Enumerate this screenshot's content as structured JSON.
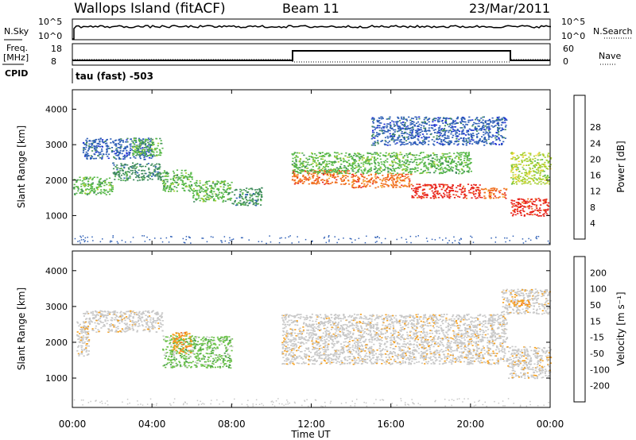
{
  "header": {
    "station": "Wallops Island (fitACF)",
    "beam": "Beam 11",
    "date": "23/Mar/2011"
  },
  "strip_labels": {
    "nsky": "N.Sky",
    "nsearch": "N.Search",
    "freq_line1": "Freq.",
    "freq_line2": "[MHz]",
    "nave": "Nave",
    "cpid": "CPID",
    "cpid_value": "tau (fast) -503"
  },
  "strip_ticks": {
    "noise_left_top": "10^5",
    "noise_left_bottom": "10^0",
    "noise_right_top": "10^5",
    "noise_right_bottom": "10^0",
    "freq_top": "18",
    "freq_bottom": "8",
    "nave_top": "60",
    "nave_bottom": "0"
  },
  "colors": {
    "power": [
      "#1c2bd6",
      "#2e5fb6",
      "#3f8b5c",
      "#57b848",
      "#a7d032",
      "#f2d43b",
      "#f5ab2c",
      "#f06d1c",
      "#e8231b"
    ],
    "velocity": [
      "#e8231b",
      "#f06d1c",
      "#f5a01e",
      "#c8c8c8",
      "#c8c8c8",
      "#6cc24a",
      "#3e9a3e",
      "#2e5fb6",
      "#1c2bd6"
    ],
    "ground_scatter": "#bdbdbd"
  },
  "chart_data": [
    {
      "type": "heatmap",
      "panel": "power",
      "title": "",
      "xlabel": "Time UT",
      "ylabel": "Slant Range [km]",
      "xlim": [
        "00:00",
        "24:00"
      ],
      "ylim": [
        180,
        4550
      ],
      "x_ticks": [
        "00:00",
        "04:00",
        "08:00",
        "12:00",
        "16:00",
        "20:00",
        "00:00"
      ],
      "y_ticks": [
        1000,
        2000,
        3000,
        4000
      ],
      "colorbar_label": "Power [dB]",
      "colorbar_ticks": [
        4,
        8,
        12,
        16,
        20,
        24,
        28
      ],
      "regions": [
        {
          "t": [
            0.0,
            2.0
          ],
          "r": [
            1600,
            2100
          ],
          "level": 3
        },
        {
          "t": [
            2.0,
            4.5
          ],
          "r": [
            2000,
            2500
          ],
          "level": 2
        },
        {
          "t": [
            4.5,
            6.0
          ],
          "r": [
            1700,
            2300
          ],
          "level": 3
        },
        {
          "t": [
            6.0,
            8.0
          ],
          "r": [
            1400,
            2000
          ],
          "level": 3
        },
        {
          "t": [
            8.0,
            9.5
          ],
          "r": [
            1300,
            1800
          ],
          "level": 2
        },
        {
          "t": [
            0.5,
            4.0
          ],
          "r": [
            2600,
            3200
          ],
          "level": 1
        },
        {
          "t": [
            3.0,
            4.5
          ],
          "r": [
            2700,
            3200
          ],
          "level": 3
        },
        {
          "t": [
            11.0,
            14.0
          ],
          "r": [
            1900,
            2300
          ],
          "level": 7
        },
        {
          "t": [
            14.0,
            17.0
          ],
          "r": [
            1800,
            2200
          ],
          "level": 7
        },
        {
          "t": [
            17.0,
            20.5
          ],
          "r": [
            1500,
            1900
          ],
          "level": 8
        },
        {
          "t": [
            20.5,
            21.8
          ],
          "r": [
            1500,
            1800
          ],
          "level": 7
        },
        {
          "t": [
            22.0,
            24.0
          ],
          "r": [
            1000,
            1500
          ],
          "level": 8
        },
        {
          "t": [
            11.0,
            20.0
          ],
          "r": [
            2200,
            2800
          ],
          "level": 3
        },
        {
          "t": [
            15.0,
            21.8
          ],
          "r": [
            3000,
            3800
          ],
          "level": 1
        },
        {
          "t": [
            22.0,
            24.0
          ],
          "r": [
            1900,
            2800
          ],
          "level": 4
        }
      ]
    },
    {
      "type": "heatmap",
      "panel": "velocity",
      "title": "",
      "xlabel": "Time UT",
      "ylabel": "Slant Range [km]",
      "xlim": [
        "00:00",
        "24:00"
      ],
      "ylim": [
        180,
        4550
      ],
      "x_ticks": [
        "00:00",
        "04:00",
        "08:00",
        "12:00",
        "16:00",
        "20:00",
        "00:00"
      ],
      "y_ticks": [
        1000,
        2000,
        3000,
        4000
      ],
      "colorbar_label": "Velocity [m s⁻¹]",
      "colorbar_ticks": [
        -200,
        -100,
        -50,
        -15,
        15,
        50,
        100,
        200
      ],
      "regions": [
        {
          "t": [
            0.5,
            4.5
          ],
          "r": [
            2300,
            2900
          ],
          "level": 3
        },
        {
          "t": [
            0.2,
            0.8
          ],
          "r": [
            1600,
            2600
          ],
          "level": 3
        },
        {
          "t": [
            4.5,
            8.0
          ],
          "r": [
            1300,
            2200
          ],
          "level": 5
        },
        {
          "t": [
            5.0,
            6.0
          ],
          "r": [
            1700,
            2300
          ],
          "level": 2
        },
        {
          "t": [
            10.5,
            21.8
          ],
          "r": [
            1400,
            2800
          ],
          "level": 3
        },
        {
          "t": [
            21.8,
            24.0
          ],
          "r": [
            1000,
            1900
          ],
          "level": 3
        },
        {
          "t": [
            21.5,
            24.0
          ],
          "r": [
            2800,
            3500
          ],
          "level": 3
        },
        {
          "t": [
            22.0,
            23.0
          ],
          "r": [
            3000,
            3200
          ],
          "level": 2
        }
      ]
    }
  ]
}
